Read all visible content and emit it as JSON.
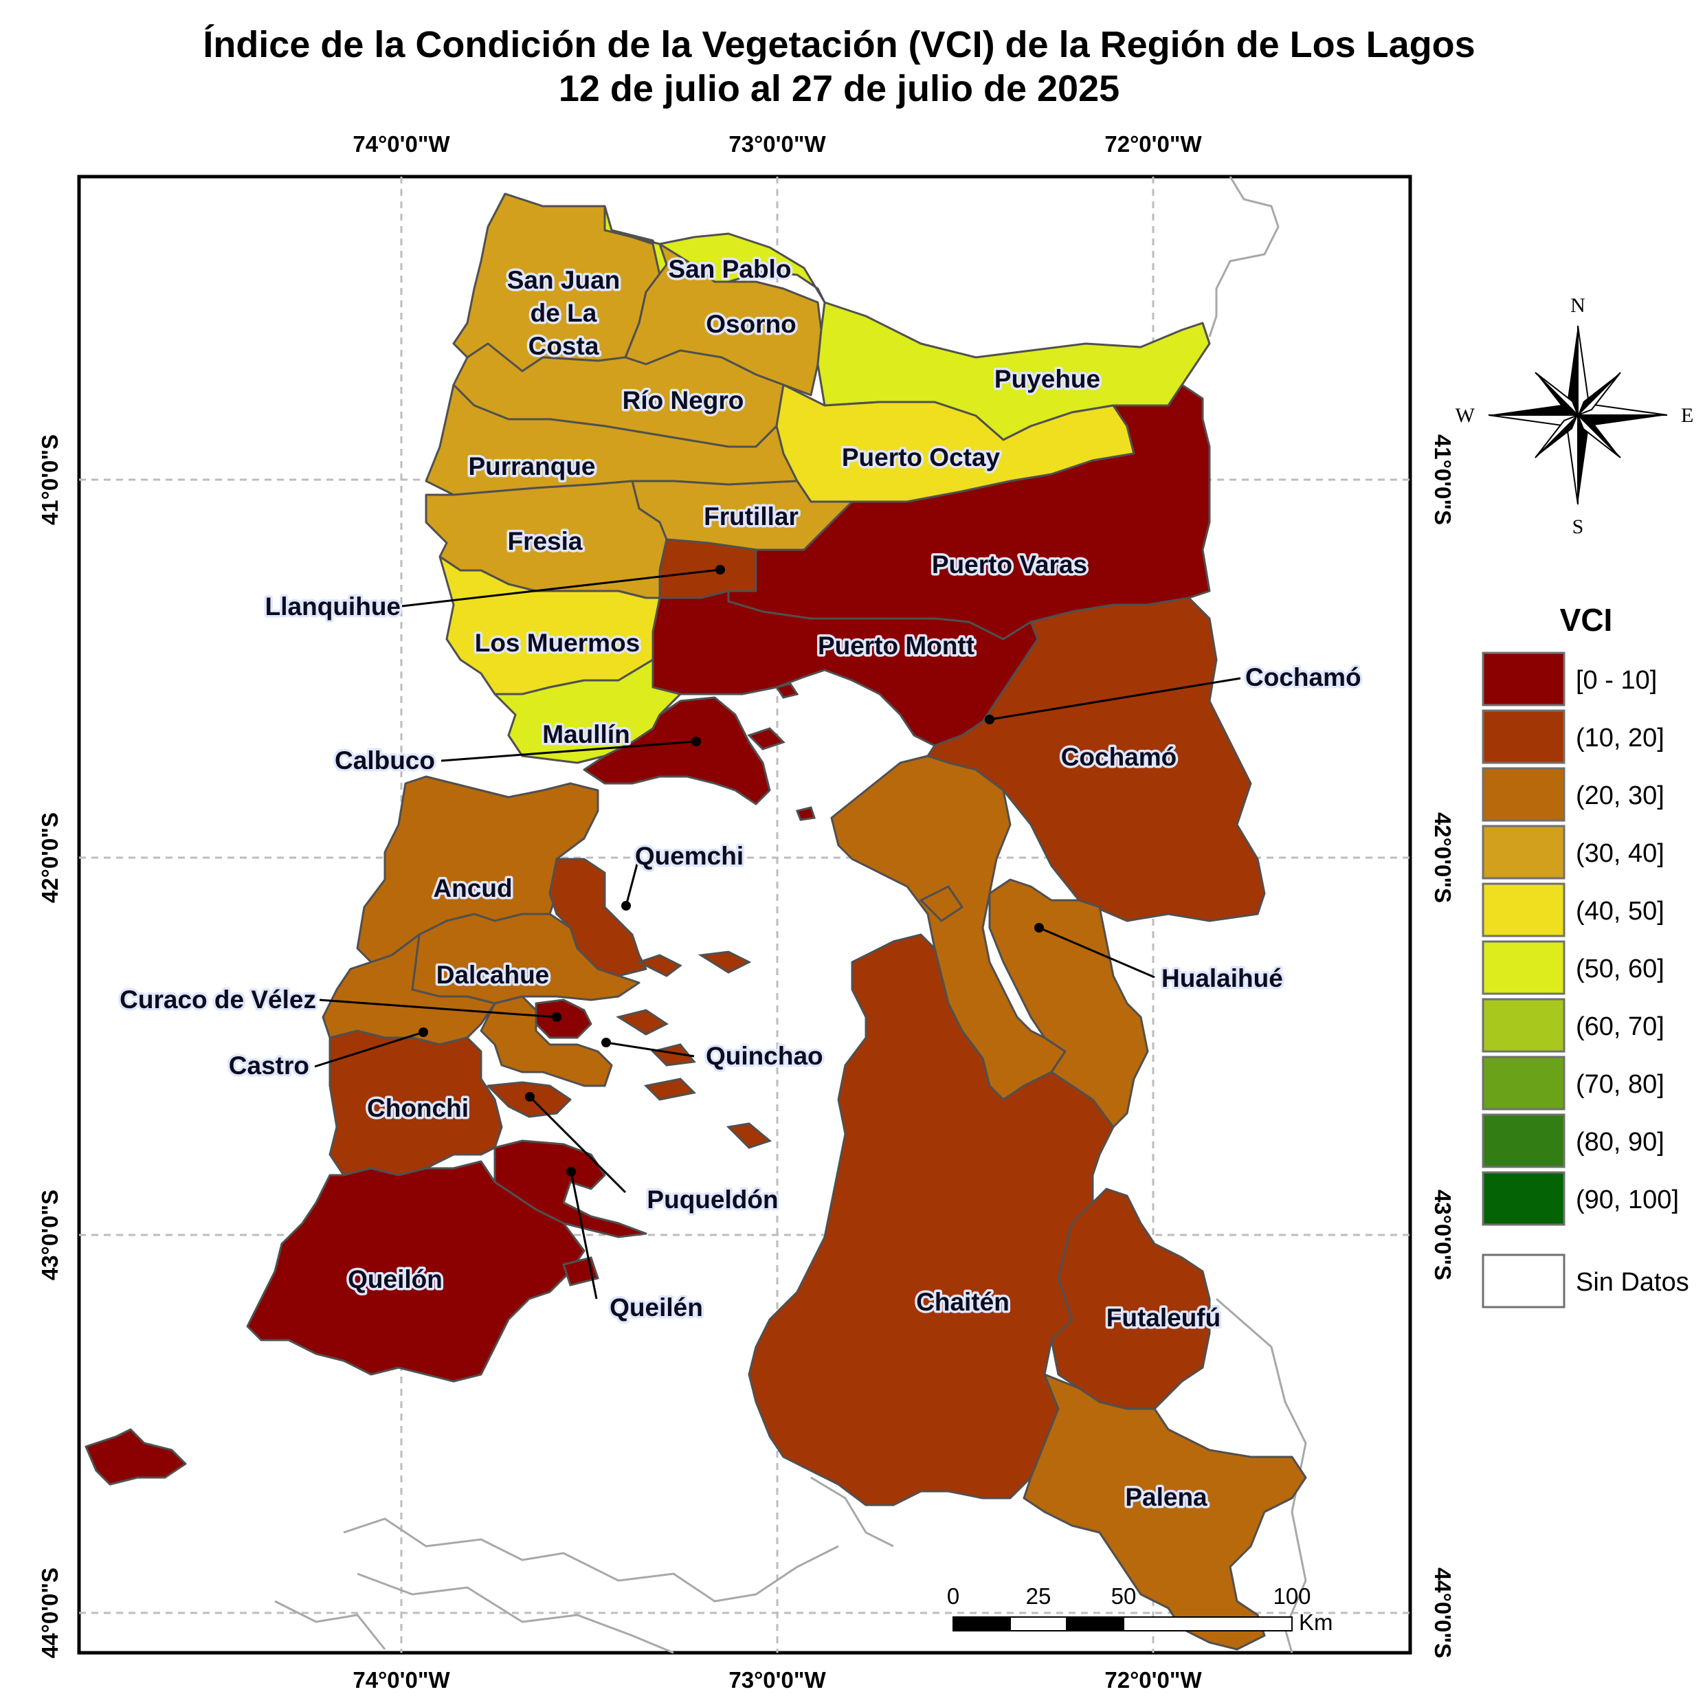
{
  "title": {
    "line1": "Índice de la Condición de la Vegetación (VCI) de la Región de Los Lagos",
    "line2": "12 de julio al 27 de julio de 2025"
  },
  "coordinates": {
    "top": [
      "74°0'0\"W",
      "73°0'0\"W",
      "72°0'0\"W"
    ],
    "bottom": [
      "74°0'0\"W",
      "73°0'0\"W",
      "72°0'0\"W"
    ],
    "left": [
      "41°0'0\"S",
      "42°0'0\"S",
      "43°0'0\"S",
      "44°0'0\"S"
    ],
    "right": [
      "41°0'0\"S",
      "42°0'0\"S",
      "43°0'0\"S",
      "44°0'0\"S"
    ]
  },
  "compass": {
    "n": "N",
    "s": "S",
    "e": "E",
    "w": "W"
  },
  "legend": {
    "title": "VCI",
    "classes": [
      {
        "label": "[0 - 10]",
        "color": "#8b0000"
      },
      {
        "label": "(10, 20]",
        "color": "#a33605"
      },
      {
        "label": "(20, 30]",
        "color": "#b8690c"
      },
      {
        "label": "(30, 40]",
        "color": "#d2a01d"
      },
      {
        "label": "(40, 50]",
        "color": "#efdf1e"
      },
      {
        "label": "(50, 60]",
        "color": "#dcec1c"
      },
      {
        "label": "(60, 70]",
        "color": "#a8c81e"
      },
      {
        "label": "(70, 80]",
        "color": "#6aa219"
      },
      {
        "label": "(80, 90]",
        "color": "#337d15"
      },
      {
        "label": "(90, 100]",
        "color": "#046304"
      }
    ],
    "no_data": {
      "label": "Sin Datos",
      "color": "#ffffff"
    }
  },
  "scale_bar": {
    "ticks": [
      "0",
      "25",
      "50",
      "100"
    ],
    "unit": "Km"
  },
  "municipalities": [
    {
      "name": "San Pablo",
      "vci_class": "(50, 60]"
    },
    {
      "name": "San Juan de La Costa",
      "vci_class": "(30, 40]"
    },
    {
      "name": "Osorno",
      "vci_class": "(30, 40]"
    },
    {
      "name": "Puyehue",
      "vci_class": "(50, 60]"
    },
    {
      "name": "Río Negro",
      "vci_class": "(30, 40]"
    },
    {
      "name": "Puerto Octay",
      "vci_class": "(40, 50]"
    },
    {
      "name": "Purranque",
      "vci_class": "(30, 40]"
    },
    {
      "name": "Frutillar",
      "vci_class": "(30, 40]"
    },
    {
      "name": "Fresia",
      "vci_class": "(30, 40]"
    },
    {
      "name": "Puerto Varas",
      "vci_class": "[0 - 10]"
    },
    {
      "name": "Llanquihue",
      "vci_class": "(10, 20]"
    },
    {
      "name": "Los Muermos",
      "vci_class": "(40, 50]"
    },
    {
      "name": "Puerto Montt",
      "vci_class": "[0 - 10]"
    },
    {
      "name": "Cochamó",
      "vci_class": "(10, 20]"
    },
    {
      "name": "Maullín",
      "vci_class": "(50, 60]"
    },
    {
      "name": "Calbuco",
      "vci_class": "[0 - 10]"
    },
    {
      "name": "Quemchi",
      "vci_class": "(10, 20]"
    },
    {
      "name": "Ancud",
      "vci_class": "(20, 30]"
    },
    {
      "name": "Hualaihué",
      "vci_class": "(20, 30]"
    },
    {
      "name": "Dalcahue",
      "vci_class": "(20, 30]"
    },
    {
      "name": "Curaco de Vélez",
      "vci_class": "[0 - 10]"
    },
    {
      "name": "Castro",
      "vci_class": "(20, 30]"
    },
    {
      "name": "Quinchao",
      "vci_class": "(20, 30]"
    },
    {
      "name": "Chonchi",
      "vci_class": "(10, 20]"
    },
    {
      "name": "Puqueldón",
      "vci_class": "(10, 20]"
    },
    {
      "name": "Queilén",
      "vci_class": "[0 - 10]"
    },
    {
      "name": "Queilón",
      "vci_class": "[0 - 10]"
    },
    {
      "name": "Chaitén",
      "vci_class": "(10, 20]"
    },
    {
      "name": "Futaleufú",
      "vci_class": "(10, 20]"
    },
    {
      "name": "Palena",
      "vci_class": "(20, 30]"
    }
  ]
}
